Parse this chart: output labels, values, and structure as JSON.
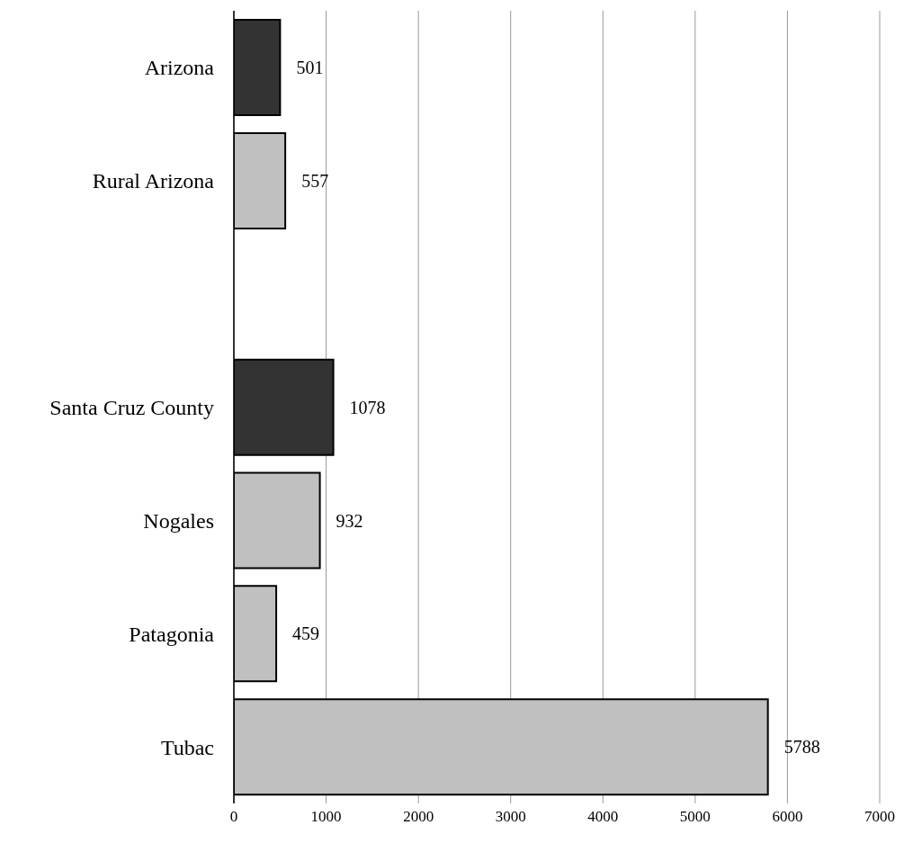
{
  "chart_data": {
    "type": "bar",
    "orientation": "horizontal",
    "categories": [
      "Arizona",
      "Rural Arizona",
      null,
      "Santa Cruz County",
      "Nogales",
      "Patagonia",
      "Tubac"
    ],
    "values": [
      501,
      557,
      null,
      1078,
      932,
      459,
      5788
    ],
    "colors": [
      "#333333",
      "#c0c0c0",
      null,
      "#333333",
      "#c0c0c0",
      "#c0c0c0",
      "#c0c0c0"
    ],
    "xlim": [
      0,
      7000
    ],
    "xticks": [
      0,
      1000,
      2000,
      3000,
      4000,
      5000,
      6000,
      7000
    ],
    "grid": "x",
    "data_labels": true
  }
}
